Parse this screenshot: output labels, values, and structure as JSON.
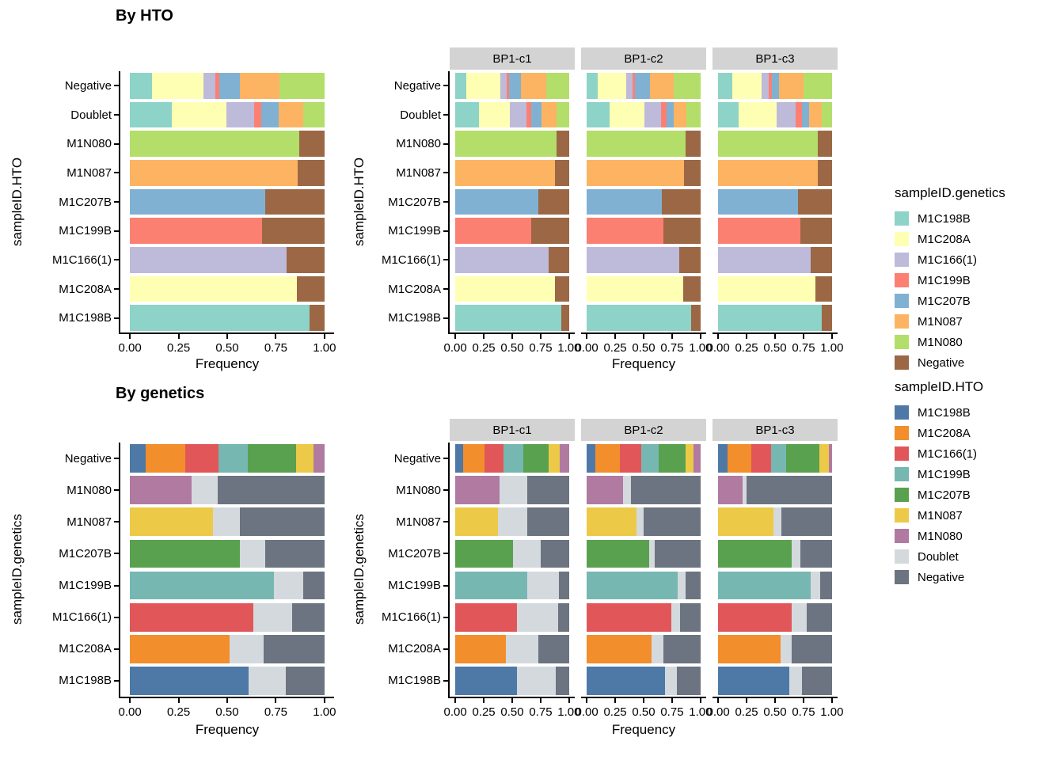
{
  "figure": {
    "top_title": "By HTO",
    "bottom_title": "By genetics",
    "strip_bg": "#D3D3D3",
    "axis_color": "#000000"
  },
  "palettes": {
    "genetics": {
      "M1C198B": "#8DD3C7",
      "M1C208A": "#FFFFB3",
      "M1C166(1)": "#BEBADA",
      "M1C199B": "#FB8072",
      "M1C207B": "#80B1D3",
      "M1N087": "#FDB462",
      "M1N080": "#B3DE69",
      "Negative": "#9C6744"
    },
    "hto": {
      "M1C198B": "#4E79A7",
      "M1C208A": "#F28E2B",
      "M1C166(1)": "#E15759",
      "M1C199B": "#76B7B2",
      "M1C207B": "#59A14F",
      "M1N087": "#EDC948",
      "M1N080": "#B07AA1",
      "Doublet": "#D4D9DE",
      "Negative": "#6B7480"
    }
  },
  "legends": [
    {
      "title": "sampleID.genetics",
      "palette": "genetics",
      "entries": [
        "M1C198B",
        "M1C208A",
        "M1C166(1)",
        "M1C199B",
        "M1C207B",
        "M1N087",
        "M1N080",
        "Negative"
      ]
    },
    {
      "title": "sampleID.HTO",
      "palette": "hto",
      "entries": [
        "M1C198B",
        "M1C208A",
        "M1C166(1)",
        "M1C199B",
        "M1C207B",
        "M1N087",
        "M1N080",
        "Doublet",
        "Negative"
      ]
    }
  ],
  "chart_data": [
    {
      "id": "hto_overall",
      "type": "bar",
      "orientation": "horizontal",
      "stacked": true,
      "title": "By HTO",
      "xlabel": "Frequency",
      "ylabel": "sampleID.HTO",
      "xlim": [
        0,
        1
      ],
      "xticks": [
        "0.00",
        "0.25",
        "0.50",
        "0.75",
        "1.00"
      ],
      "categories": [
        "Negative",
        "Doublet",
        "M1N080",
        "M1N087",
        "M1C207B",
        "M1C199B",
        "M1C166(1)",
        "M1C208A",
        "M1C198B"
      ],
      "palette": "genetics",
      "stack_order": [
        "M1C198B",
        "M1C208A",
        "M1C166(1)",
        "M1C199B",
        "M1C207B",
        "M1N087",
        "M1N080",
        "Negative"
      ],
      "facets": [
        {
          "label": null,
          "rows": {
            "Negative": {
              "M1C198B": 0.112,
              "M1C208A": 0.264,
              "M1C166(1)": 0.064,
              "M1C199B": 0.018,
              "M1C207B": 0.106,
              "M1N087": 0.203,
              "M1N080": 0.233
            },
            "Doublet": {
              "M1C198B": 0.214,
              "M1C208A": 0.28,
              "M1C166(1)": 0.146,
              "M1C199B": 0.037,
              "M1C207B": 0.088,
              "M1N087": 0.126,
              "M1N080": 0.109
            },
            "M1N080": {
              "M1N080": 0.871,
              "Negative": 0.129
            },
            "M1N087": {
              "M1N087": 0.864,
              "Negative": 0.136
            },
            "M1C207B": {
              "M1C207B": 0.695,
              "Negative": 0.305
            },
            "M1C199B": {
              "M1C199B": 0.681,
              "Negative": 0.319
            },
            "M1C166(1)": {
              "M1C166(1)": 0.806,
              "Negative": 0.194
            },
            "M1C208A": {
              "M1C208A": 0.858,
              "Negative": 0.142
            },
            "M1C198B": {
              "M1C198B": 0.923,
              "Negative": 0.077
            }
          }
        }
      ]
    },
    {
      "id": "hto_by_bp",
      "type": "bar",
      "orientation": "horizontal",
      "stacked": true,
      "title": "",
      "xlabel": "Frequency",
      "ylabel": "sampleID.HTO",
      "xlim": [
        0,
        1
      ],
      "xticks": [
        "0.00",
        "0.25",
        "0.50",
        "0.75",
        "1.00"
      ],
      "categories": [
        "Negative",
        "Doublet",
        "M1N080",
        "M1N087",
        "M1C207B",
        "M1C199B",
        "M1C166(1)",
        "M1C208A",
        "M1C198B"
      ],
      "palette": "genetics",
      "stack_order": [
        "M1C198B",
        "M1C208A",
        "M1C166(1)",
        "M1C199B",
        "M1C207B",
        "M1N087",
        "M1N080",
        "Negative"
      ],
      "facets": [
        {
          "label": "BP1-c1",
          "rows": {
            "Negative": {
              "M1C198B": 0.097,
              "M1C208A": 0.296,
              "M1C166(1)": 0.057,
              "M1C199B": 0.024,
              "M1C207B": 0.104,
              "M1N087": 0.218,
              "M1N080": 0.204
            },
            "Doublet": {
              "M1C198B": 0.208,
              "M1C208A": 0.272,
              "M1C166(1)": 0.142,
              "M1C199B": 0.047,
              "M1C207B": 0.09,
              "M1N087": 0.128,
              "M1N080": 0.113
            },
            "M1N080": {
              "M1N080": 0.887,
              "Negative": 0.113
            },
            "M1N087": {
              "M1N087": 0.875,
              "Negative": 0.125
            },
            "M1C207B": {
              "M1C207B": 0.728,
              "Negative": 0.272
            },
            "M1C199B": {
              "M1C199B": 0.664,
              "Negative": 0.336
            },
            "M1C166(1)": {
              "M1C166(1)": 0.823,
              "Negative": 0.177
            },
            "M1C208A": {
              "M1C208A": 0.875,
              "Negative": 0.125
            },
            "M1C198B": {
              "M1C198B": 0.934,
              "Negative": 0.066
            }
          }
        },
        {
          "label": "BP1-c2",
          "rows": {
            "Negative": {
              "M1C198B": 0.095,
              "M1C208A": 0.255,
              "M1C166(1)": 0.055,
              "M1C199B": 0.019,
              "M1C207B": 0.129,
              "M1N087": 0.21,
              "M1N080": 0.237
            },
            "Doublet": {
              "M1C198B": 0.198,
              "M1C208A": 0.31,
              "M1C166(1)": 0.143,
              "M1C199B": 0.048,
              "M1C207B": 0.064,
              "M1N087": 0.112,
              "M1N080": 0.125
            },
            "M1N080": {
              "M1N080": 0.869,
              "Negative": 0.131
            },
            "M1N087": {
              "M1N087": 0.857,
              "Negative": 0.143
            },
            "M1C207B": {
              "M1C207B": 0.662,
              "Negative": 0.338
            },
            "M1C199B": {
              "M1C199B": 0.671,
              "Negative": 0.329
            },
            "M1C166(1)": {
              "M1C166(1)": 0.81,
              "Negative": 0.19
            },
            "M1C208A": {
              "M1C208A": 0.845,
              "Negative": 0.155
            },
            "M1C198B": {
              "M1C198B": 0.917,
              "Negative": 0.083
            }
          }
        },
        {
          "label": "BP1-c3",
          "rows": {
            "Negative": {
              "M1C198B": 0.123,
              "M1C208A": 0.256,
              "M1C166(1)": 0.064,
              "M1C199B": 0.03,
              "M1C207B": 0.064,
              "M1N087": 0.213,
              "M1N080": 0.25
            },
            "Doublet": {
              "M1C198B": 0.182,
              "M1C208A": 0.332,
              "M1C166(1)": 0.166,
              "M1C199B": 0.054,
              "M1C207B": 0.064,
              "M1N087": 0.111,
              "M1N080": 0.091
            },
            "M1N080": {
              "M1N080": 0.875,
              "Negative": 0.125
            },
            "M1N087": {
              "M1N087": 0.877,
              "Negative": 0.123
            },
            "M1C207B": {
              "M1C207B": 0.7,
              "Negative": 0.3
            },
            "M1C199B": {
              "M1C199B": 0.72,
              "Negative": 0.28
            },
            "M1C166(1)": {
              "M1C166(1)": 0.81,
              "Negative": 0.19
            },
            "M1C208A": {
              "M1C208A": 0.858,
              "Negative": 0.142
            },
            "M1C198B": {
              "M1C198B": 0.912,
              "Negative": 0.088
            }
          }
        }
      ]
    },
    {
      "id": "genetics_overall",
      "type": "bar",
      "orientation": "horizontal",
      "stacked": true,
      "title": "By genetics",
      "xlabel": "Frequency",
      "ylabel": "sampleID.genetics",
      "xlim": [
        0,
        1
      ],
      "xticks": [
        "0.00",
        "0.25",
        "0.50",
        "0.75",
        "1.00"
      ],
      "categories": [
        "Negative",
        "M1N080",
        "M1N087",
        "M1C207B",
        "M1C199B",
        "M1C166(1)",
        "M1C208A",
        "M1C198B"
      ],
      "palette": "hto",
      "stack_order": [
        "M1C198B",
        "M1C208A",
        "M1C166(1)",
        "M1C199B",
        "M1C207B",
        "M1N087",
        "M1N080",
        "Doublet",
        "Negative"
      ],
      "facets": [
        {
          "label": null,
          "rows": {
            "Negative": {
              "M1C198B": 0.079,
              "M1C208A": 0.207,
              "M1C166(1)": 0.168,
              "M1C199B": 0.153,
              "M1C207B": 0.248,
              "M1N087": 0.088,
              "M1N080": 0.057
            },
            "M1N080": {
              "M1N080": 0.316,
              "Doublet": 0.136,
              "Negative": 0.548
            },
            "M1N087": {
              "M1N087": 0.428,
              "Doublet": 0.138,
              "Negative": 0.434
            },
            "M1C207B": {
              "M1C207B": 0.566,
              "Doublet": 0.129,
              "Negative": 0.305
            },
            "M1C199B": {
              "M1C199B": 0.742,
              "Doublet": 0.149,
              "Negative": 0.109
            },
            "M1C166(1)": {
              "M1C166(1)": 0.634,
              "Doublet": 0.201,
              "Negative": 0.165
            },
            "M1C208A": {
              "M1C208A": 0.512,
              "Doublet": 0.176,
              "Negative": 0.312
            },
            "M1C198B": {
              "M1C198B": 0.61,
              "Doublet": 0.191,
              "Negative": 0.199
            }
          }
        }
      ]
    },
    {
      "id": "genetics_by_bp",
      "type": "bar",
      "orientation": "horizontal",
      "stacked": true,
      "title": "",
      "xlabel": "Frequency",
      "ylabel": "sampleID.genetics",
      "xlim": [
        0,
        1
      ],
      "xticks": [
        "0.00",
        "0.25",
        "0.50",
        "0.75",
        "1.00"
      ],
      "categories": [
        "Negative",
        "M1N080",
        "M1N087",
        "M1C207B",
        "M1C199B",
        "M1C166(1)",
        "M1C208A",
        "M1C198B"
      ],
      "palette": "hto",
      "stack_order": [
        "M1C198B",
        "M1C208A",
        "M1C166(1)",
        "M1C199B",
        "M1C207B",
        "M1N087",
        "M1N080",
        "Doublet",
        "Negative"
      ],
      "facets": [
        {
          "label": "BP1-c1",
          "rows": {
            "Negative": {
              "M1C198B": 0.066,
              "M1C208A": 0.194,
              "M1C166(1)": 0.161,
              "M1C199B": 0.177,
              "M1C207B": 0.225,
              "M1N087": 0.095,
              "M1N080": 0.082
            },
            "M1N080": {
              "M1N080": 0.392,
              "Doublet": 0.241,
              "Negative": 0.367
            },
            "M1N087": {
              "M1N087": 0.378,
              "Doublet": 0.255,
              "Negative": 0.367
            },
            "M1C207B": {
              "M1C207B": 0.504,
              "Doublet": 0.248,
              "Negative": 0.248
            },
            "M1C199B": {
              "M1C199B": 0.634,
              "Doublet": 0.277,
              "Negative": 0.089
            },
            "M1C166(1)": {
              "M1C166(1)": 0.539,
              "Doublet": 0.362,
              "Negative": 0.099
            },
            "M1C208A": {
              "M1C208A": 0.444,
              "Doublet": 0.284,
              "Negative": 0.272
            },
            "M1C198B": {
              "M1C198B": 0.544,
              "Doublet": 0.338,
              "Negative": 0.118
            }
          }
        },
        {
          "label": "BP1-c2",
          "rows": {
            "Negative": {
              "M1C198B": 0.079,
              "M1C208A": 0.214,
              "M1C166(1)": 0.183,
              "M1C199B": 0.155,
              "M1C207B": 0.238,
              "M1N087": 0.071,
              "M1N080": 0.06
            },
            "M1N080": {
              "M1N080": 0.321,
              "Doublet": 0.071,
              "Negative": 0.608
            },
            "M1N087": {
              "M1N087": 0.436,
              "Doublet": 0.064,
              "Negative": 0.5
            },
            "M1C207B": {
              "M1C207B": 0.548,
              "Doublet": 0.052,
              "Negative": 0.4
            },
            "M1C199B": {
              "M1C199B": 0.798,
              "Doublet": 0.071,
              "Negative": 0.131
            },
            "M1C166(1)": {
              "M1C166(1)": 0.743,
              "Doublet": 0.079,
              "Negative": 0.178
            },
            "M1C208A": {
              "M1C208A": 0.571,
              "Doublet": 0.102,
              "Negative": 0.327
            },
            "M1C198B": {
              "M1C198B": 0.686,
              "Doublet": 0.107,
              "Negative": 0.207
            }
          }
        },
        {
          "label": "BP1-c3",
          "rows": {
            "Negative": {
              "M1C198B": 0.081,
              "M1C208A": 0.209,
              "M1C166(1)": 0.173,
              "M1C199B": 0.135,
              "M1C207B": 0.289,
              "M1N087": 0.085,
              "M1N080": 0.028
            },
            "M1N080": {
              "M1N080": 0.213,
              "Doublet": 0.04,
              "Negative": 0.747
            },
            "M1N087": {
              "M1N087": 0.483,
              "Doublet": 0.071,
              "Negative": 0.446
            },
            "M1C207B": {
              "M1C207B": 0.649,
              "Doublet": 0.071,
              "Negative": 0.28
            },
            "M1C199B": {
              "M1C199B": 0.815,
              "Doublet": 0.083,
              "Negative": 0.102
            },
            "M1C166(1)": {
              "M1C166(1)": 0.649,
              "Doublet": 0.126,
              "Negative": 0.225
            },
            "M1C208A": {
              "M1C208A": 0.55,
              "Doublet": 0.095,
              "Negative": 0.355
            },
            "M1C198B": {
              "M1C198B": 0.626,
              "Doublet": 0.109,
              "Negative": 0.265
            }
          }
        }
      ]
    }
  ]
}
